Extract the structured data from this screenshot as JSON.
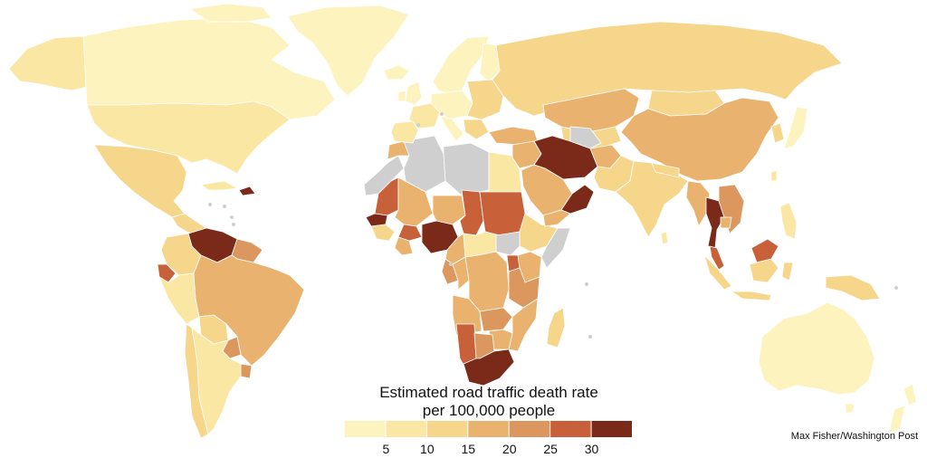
{
  "legend": {
    "title_line1": "Estimated road traffic death rate",
    "title_line2": "per 100,000 people",
    "tick_labels": [
      "5",
      "10",
      "15",
      "20",
      "25",
      "30"
    ],
    "bins": [
      {
        "color": "#fdf3bf"
      },
      {
        "color": "#fbe7a4"
      },
      {
        "color": "#f6d68b"
      },
      {
        "color": "#e9b36f"
      },
      {
        "color": "#db975e"
      },
      {
        "color": "#c8603a"
      },
      {
        "color": "#7b2a1a"
      }
    ]
  },
  "no_data_color": "#cfcfcf",
  "credit": "Max Fisher/Washington Post"
}
